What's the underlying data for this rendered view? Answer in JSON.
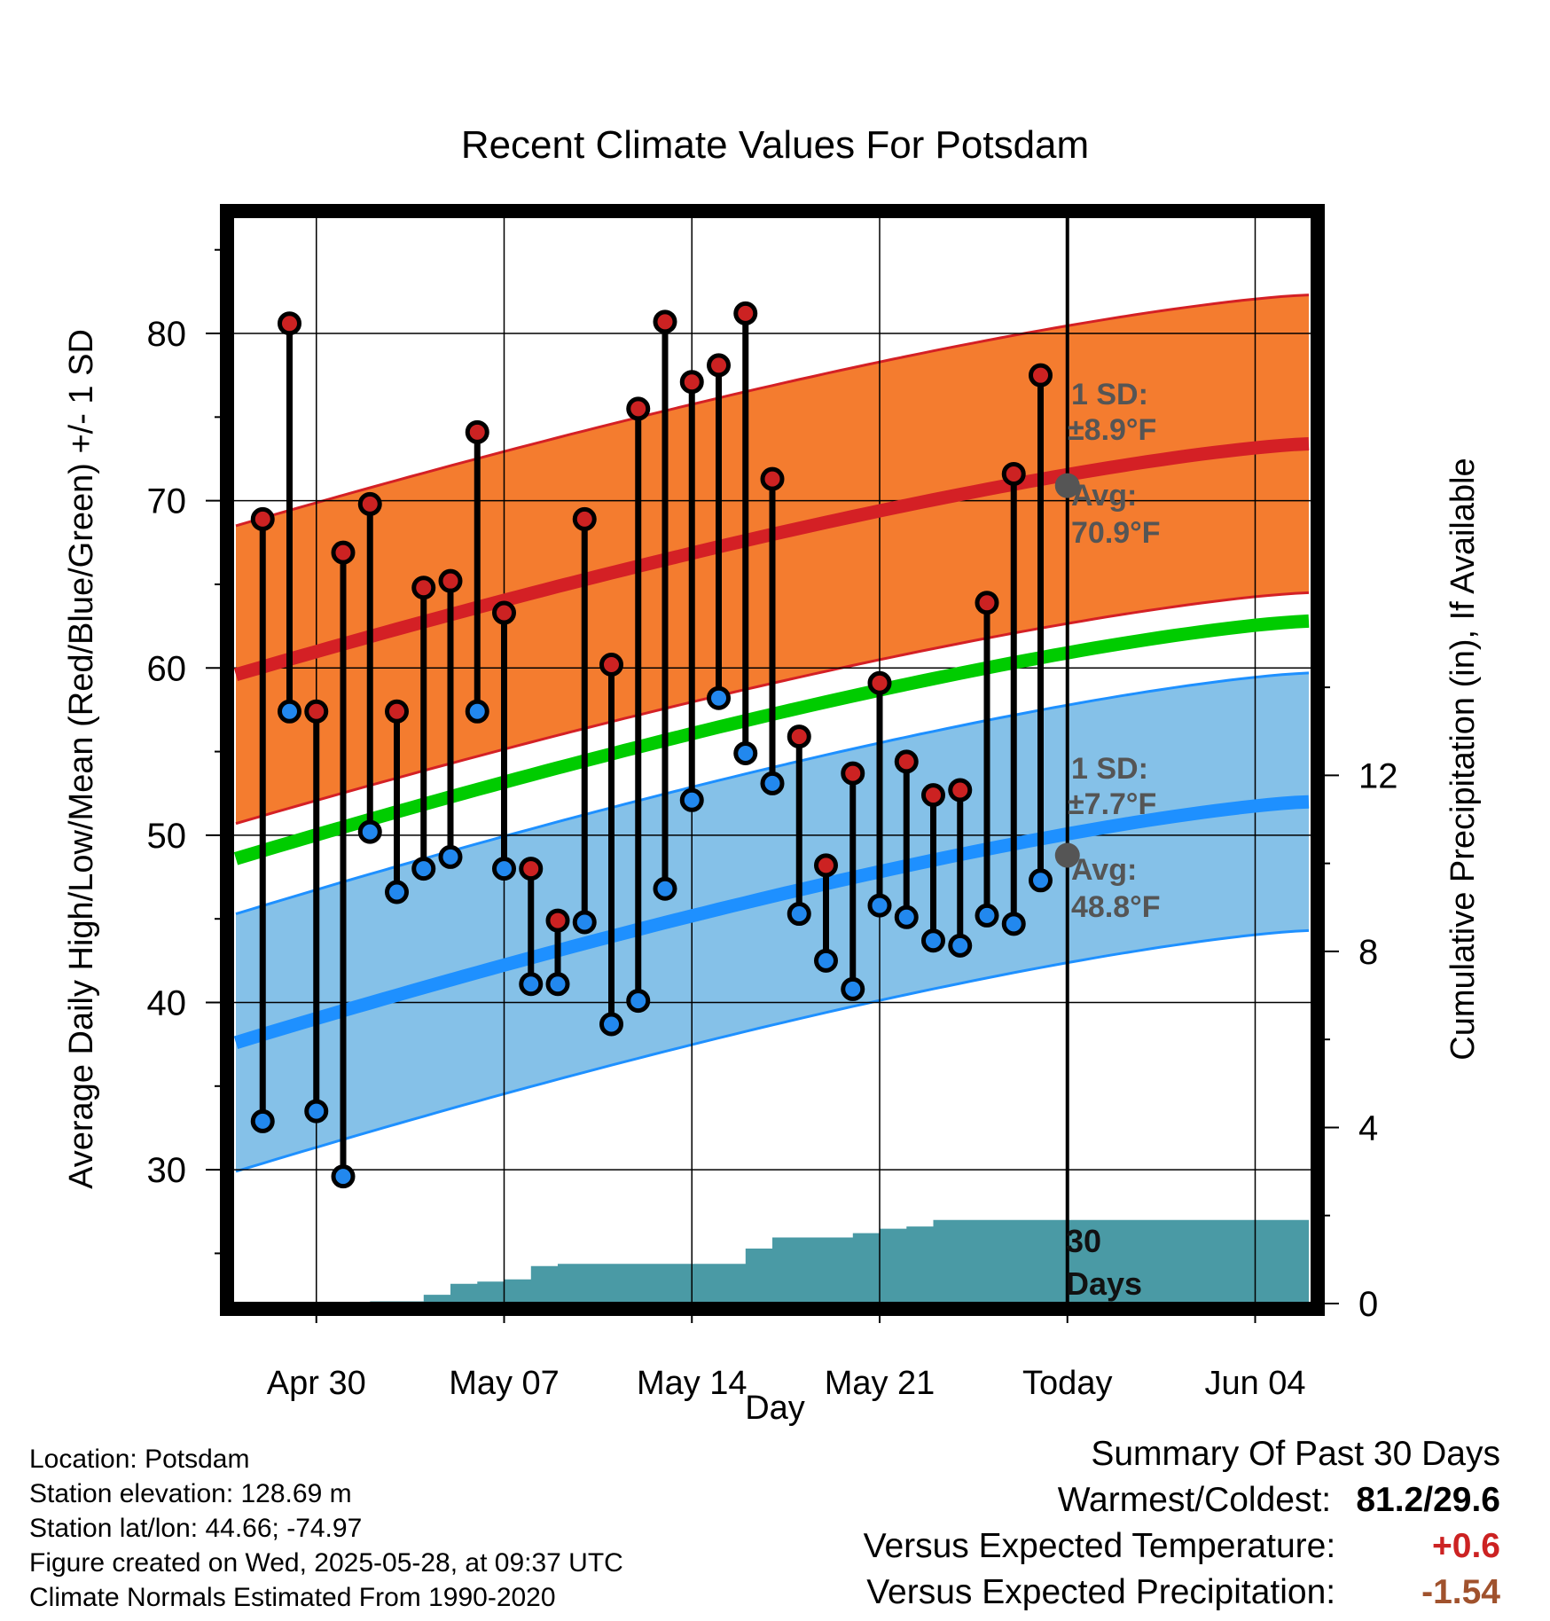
{
  "title": "Recent Climate Values For Potsdam",
  "xlabel": "Day",
  "ylabel_left": "Average Daily High/Low/Mean (Red/Blue/Green) +/- 1 SD",
  "ylabel_right": "Cumulative Precipitation (in), If Available",
  "annotations": {
    "high_sd_label": "1 SD:",
    "high_sd_value": "±8.9°F",
    "high_avg_label": "Avg:",
    "high_avg_value": "70.9°F",
    "low_sd_label": "1 SD:",
    "low_sd_value": "±7.7°F",
    "low_avg_label": "Avg:",
    "low_avg_value": "48.8°F",
    "days_line1": "30",
    "days_line2": "Days"
  },
  "footer": {
    "location": "Location: Potsdam",
    "elevation": "Station elevation: 128.69 m",
    "latlon": "Station lat/lon: 44.66; -74.97",
    "created": "Figure created on Wed, 2025-05-28, at 09:37 UTC",
    "normals": "Climate Normals Estimated From 1990-2020"
  },
  "summary": {
    "title": "Summary Of Past 30 Days",
    "warmest_label": "Warmest/Coldest:",
    "warmest_value": "81.2/29.6",
    "temp_label": "Versus Expected Temperature:",
    "temp_value": "+0.6",
    "precip_label": "Versus Expected Precipitation:",
    "precip_value": "-1.54"
  },
  "colors": {
    "high_band": "#f47c2f",
    "high_mean": "#d42025",
    "low_band": "#85c1e8",
    "low_mean": "#1e90ff",
    "mean_line": "#00cc00",
    "precip": "#4a9aa5",
    "high_dot": "#cc2222",
    "low_dot": "#2288ee",
    "annotation": "#555555",
    "temp_value": "#cc2222",
    "precip_value": "#a0522d"
  },
  "chart_data": {
    "type": "line",
    "x_ticks": [
      "Apr 30",
      "May 07",
      "May 14",
      "May 21",
      "Today",
      "Jun 04"
    ],
    "y_ticks_left": [
      30,
      40,
      50,
      60,
      70,
      80
    ],
    "y_ticks_right": [
      0,
      4,
      8,
      12
    ],
    "ylim_left": [
      22,
      87
    ],
    "ylim_right": [
      0,
      24.7
    ],
    "grid": true,
    "days": [
      "Apr 28",
      "Apr 29",
      "Apr 30",
      "May 01",
      "May 02",
      "May 03",
      "May 04",
      "May 05",
      "May 06",
      "May 07",
      "May 08",
      "May 09",
      "May 10",
      "May 11",
      "May 12",
      "May 13",
      "May 14",
      "May 15",
      "May 16",
      "May 17",
      "May 18",
      "May 19",
      "May 20",
      "May 21",
      "May 22",
      "May 23",
      "May 24",
      "May 25",
      "May 26",
      "May 27"
    ],
    "highs": [
      68.9,
      80.6,
      57.4,
      66.9,
      69.8,
      57.4,
      64.8,
      65.2,
      74.1,
      63.3,
      48.0,
      44.9,
      68.9,
      60.2,
      75.5,
      80.7,
      77.1,
      78.1,
      81.2,
      71.3,
      55.9,
      48.2,
      53.7,
      59.1,
      54.4,
      52.4,
      52.7,
      63.9,
      71.6,
      77.5
    ],
    "lows": [
      32.9,
      57.4,
      33.5,
      29.6,
      50.2,
      46.6,
      48.0,
      48.7,
      57.4,
      48.0,
      41.1,
      41.1,
      44.8,
      38.7,
      40.1,
      46.8,
      52.1,
      58.2,
      54.9,
      53.1,
      45.3,
      42.5,
      40.8,
      45.8,
      45.1,
      43.7,
      43.4,
      45.2,
      44.7,
      47.3
    ],
    "normal_high": {
      "start": 59.6,
      "end": 73.4,
      "today": 70.9,
      "sd": 8.9
    },
    "normal_low": {
      "start": 37.6,
      "end": 52.0,
      "today": 48.8,
      "sd": 7.7
    },
    "normal_mean": {
      "start": 48.6,
      "end": 62.8
    },
    "precip_cumulative": [
      0,
      0,
      0,
      0,
      0,
      0.05,
      0.05,
      0.2,
      0.45,
      0.5,
      0.55,
      0.85,
      0.9,
      0.9,
      0.9,
      0.9,
      0.9,
      0.9,
      0.9,
      1.25,
      1.5,
      1.5,
      1.5,
      1.6,
      1.7,
      1.75,
      1.9,
      1.9,
      1.9,
      1.9,
      1.9,
      1.9,
      1.9,
      1.9,
      1.9,
      1.9,
      1.9,
      1.9,
      1.9,
      1.9,
      1.9
    ],
    "series": [
      {
        "name": "Red",
        "values_key": "highs"
      },
      {
        "name": "Blue",
        "values_key": "lows"
      },
      {
        "name": "Green",
        "values_key": "normal_mean"
      }
    ]
  }
}
